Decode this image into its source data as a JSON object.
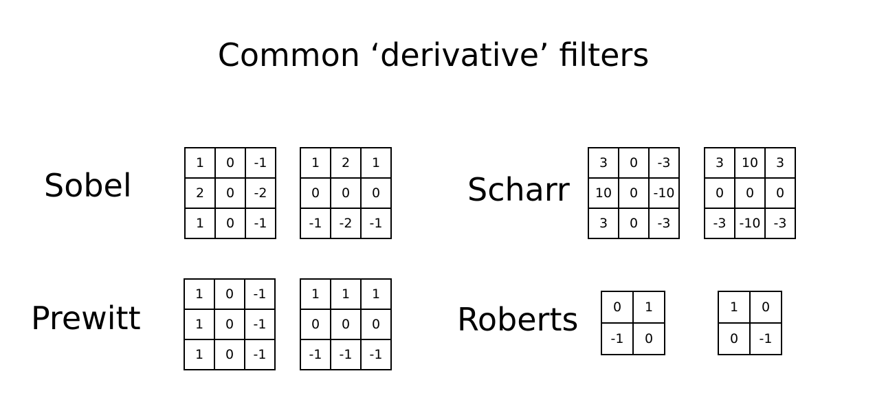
{
  "title": "Common ‘derivative’ filters",
  "filters": {
    "sobel": {
      "name": "Sobel",
      "kernel_x": [
        [
          "1",
          "0",
          "-1"
        ],
        [
          "2",
          "0",
          "-2"
        ],
        [
          "1",
          "0",
          "-1"
        ]
      ],
      "kernel_y": [
        [
          "1",
          "2",
          "1"
        ],
        [
          "0",
          "0",
          "0"
        ],
        [
          "-1",
          "-2",
          "-1"
        ]
      ]
    },
    "prewitt": {
      "name": "Prewitt",
      "kernel_x": [
        [
          "1",
          "0",
          "-1"
        ],
        [
          "1",
          "0",
          "-1"
        ],
        [
          "1",
          "0",
          "-1"
        ]
      ],
      "kernel_y": [
        [
          "1",
          "1",
          "1"
        ],
        [
          "0",
          "0",
          "0"
        ],
        [
          "-1",
          "-1",
          "-1"
        ]
      ]
    },
    "scharr": {
      "name": "Scharr",
      "kernel_x": [
        [
          "3",
          "0",
          "-3"
        ],
        [
          "10",
          "0",
          "-10"
        ],
        [
          "3",
          "0",
          "-3"
        ]
      ],
      "kernel_y": [
        [
          "3",
          "10",
          "3"
        ],
        [
          "0",
          "0",
          "0"
        ],
        [
          "-3",
          "-10",
          "-3"
        ]
      ]
    },
    "roberts": {
      "name": "Roberts",
      "kernel_1": [
        [
          "0",
          "1"
        ],
        [
          "-1",
          "0"
        ]
      ],
      "kernel_2": [
        [
          "1",
          "0"
        ],
        [
          "0",
          "-1"
        ]
      ]
    }
  }
}
